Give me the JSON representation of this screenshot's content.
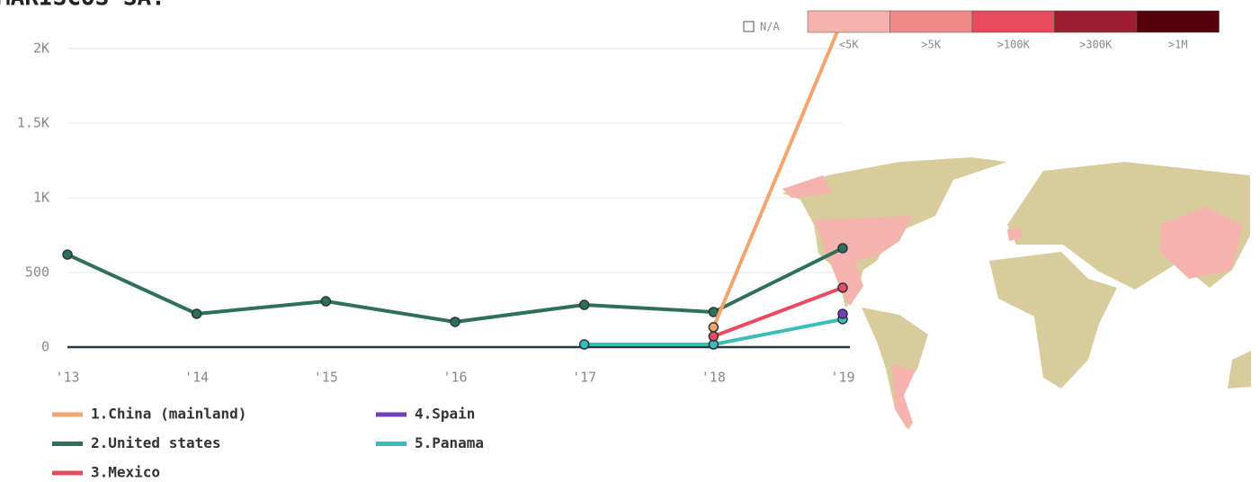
{
  "chart_data": {
    "type": "line",
    "title": "MARISCOS SA.",
    "categories": [
      "'13",
      "'14",
      "'15",
      "'16",
      "'17",
      "'18",
      "'19"
    ],
    "series": [
      {
        "name": "1.China (mainland)",
        "color": "#f4a46c",
        "values": [
          null,
          null,
          null,
          null,
          null,
          133,
          2200
        ]
      },
      {
        "name": "2.United states",
        "color": "#2e7058",
        "values": [
          620,
          223,
          307,
          169,
          283,
          235,
          663
        ]
      },
      {
        "name": "3.Mexico",
        "color": "#e84a5f",
        "values": [
          null,
          null,
          null,
          null,
          null,
          72,
          398
        ]
      },
      {
        "name": "4.Spain",
        "color": "#6f3fbf",
        "values": [
          null,
          null,
          null,
          null,
          null,
          null,
          223
        ]
      },
      {
        "name": "5.Panama",
        "color": "#3cbcb7",
        "values": [
          null,
          null,
          null,
          null,
          18,
          18,
          187
        ]
      }
    ],
    "ylim": [
      0,
      2000
    ],
    "yticks": [
      0,
      500,
      {
        "value": 1000,
        "label": "1K"
      },
      {
        "value": 1500,
        "label": "1.5K"
      },
      {
        "value": 2000,
        "label": "2K"
      }
    ],
    "grid": true,
    "map_legend": {
      "na_label": "N/A",
      "bins": [
        {
          "label": "<5K",
          "color": "#f4b3ac"
        },
        {
          "label": ">5K",
          "color": "#f08a88"
        },
        {
          "label": ">100K",
          "color": "#e84a5f"
        },
        {
          "label": ">300K",
          "color": "#9a1e30"
        },
        {
          "label": ">1M",
          "color": "#55000a"
        }
      ]
    }
  }
}
